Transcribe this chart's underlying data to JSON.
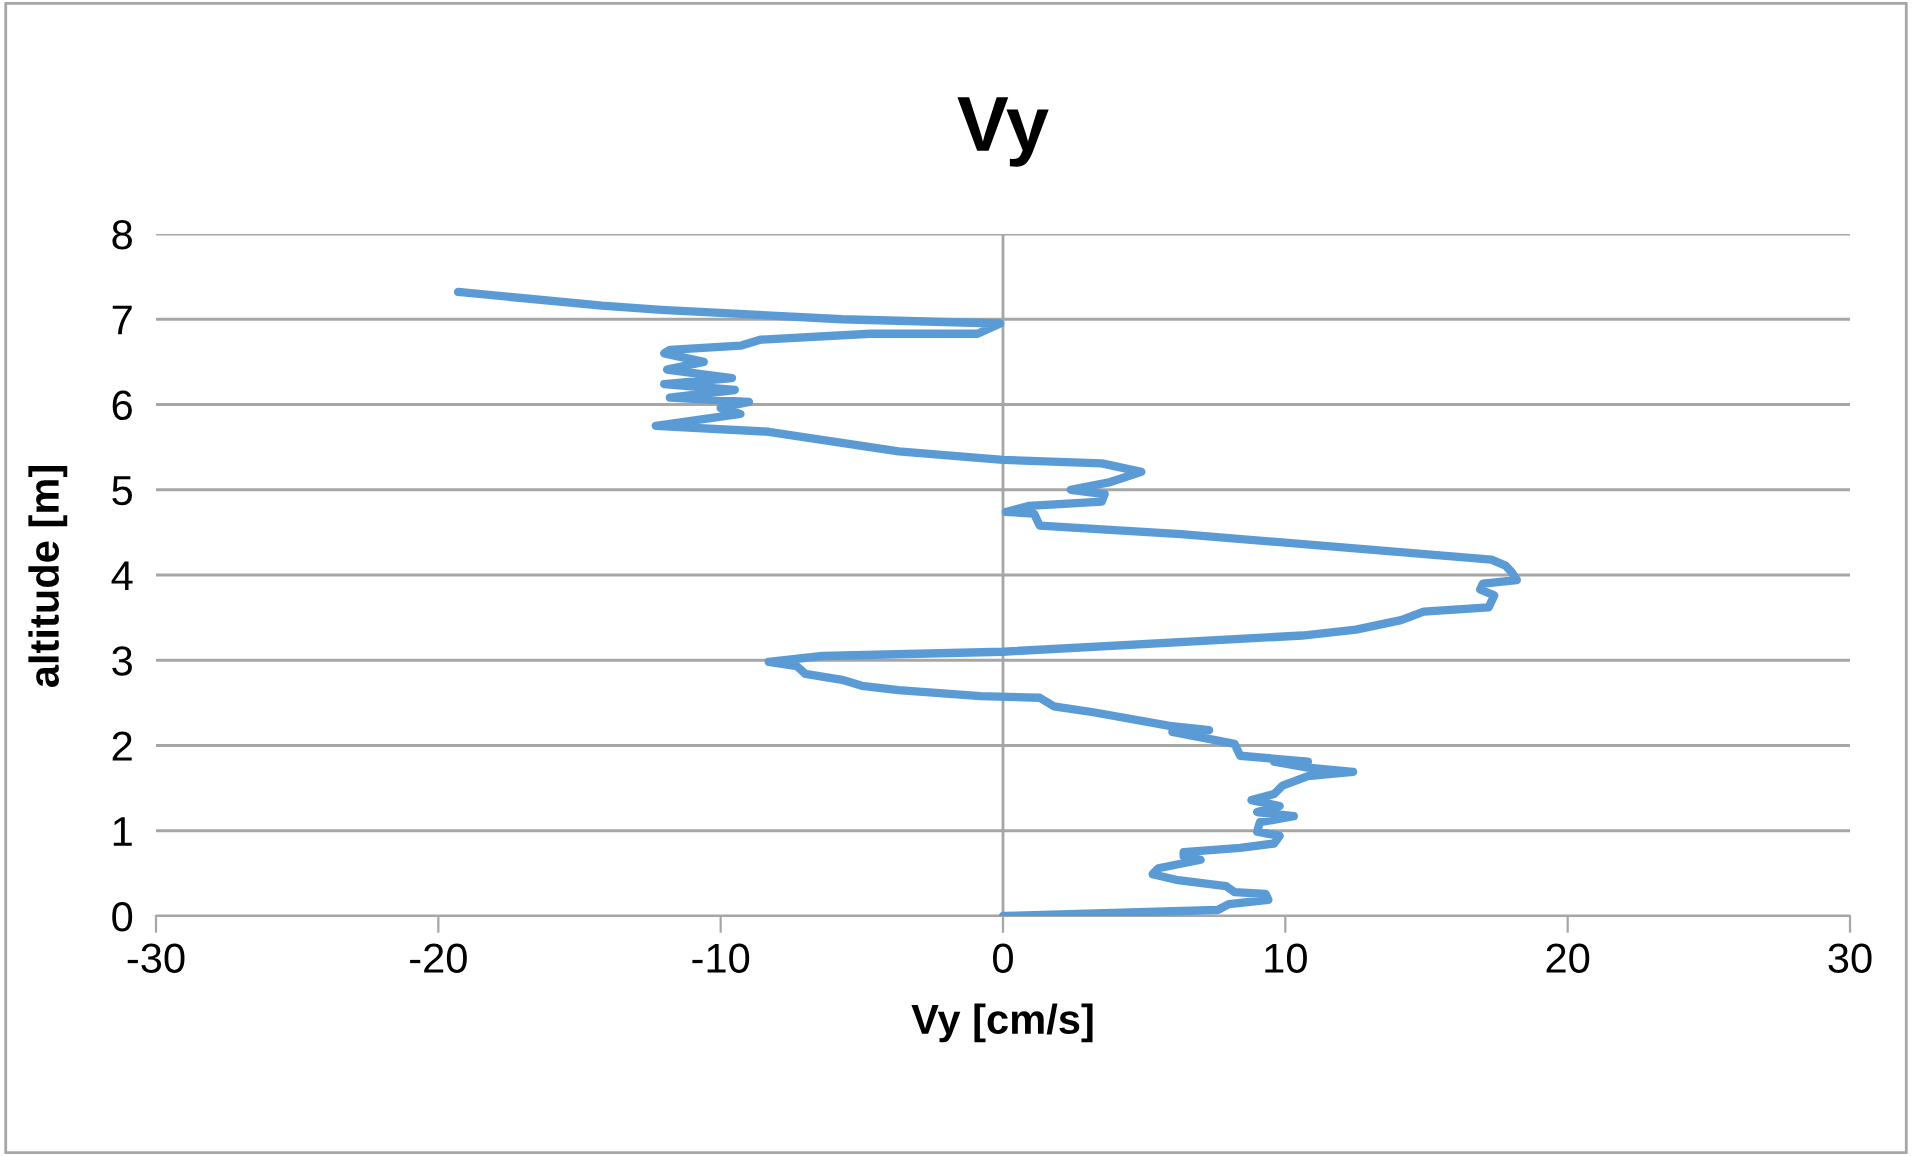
{
  "chart_data": {
    "type": "line",
    "title": "Vy",
    "xlabel": "Vy [cm/s]",
    "ylabel": "altitude [m]",
    "xlim": [
      -30,
      30
    ],
    "xticks": [
      -30,
      -20,
      -10,
      0,
      10,
      20,
      30
    ],
    "ylim": [
      0,
      8
    ],
    "yticks": [
      0,
      1,
      2,
      3,
      4,
      5,
      6,
      7,
      8
    ],
    "grid": "y",
    "legend": false,
    "ref_lines": [
      {
        "axis": "x",
        "value": 0,
        "color": "#a6a6a6"
      }
    ],
    "marker": "none",
    "line_style": "solid",
    "series": [
      {
        "color": "#5b9bd5",
        "x": [
          0,
          7.6,
          8.0,
          9.4,
          9.3,
          8.2,
          7.9,
          6.2,
          5.3,
          5.5,
          7.0,
          6.4,
          6.4,
          8.4,
          9.6,
          9.8,
          9.0,
          9.1,
          10.3,
          9.0,
          9.8,
          8.8,
          9.6,
          9.9,
          10.8,
          12.4,
          10.8,
          9.6,
          10.8,
          8.4,
          8.2,
          6.0,
          7.3,
          5.9,
          3.2,
          1.8,
          1.3,
          -0.8,
          -3.7,
          -5.0,
          -5.7,
          -7.0,
          -7.3,
          -8.3,
          -6.4,
          0,
          10.6,
          12.5,
          14.1,
          14.9,
          17.2,
          17.4,
          16.9,
          17.0,
          18.2,
          18.0,
          17.8,
          17.3,
          6.3,
          1.3,
          1.1,
          0.1,
          0.9,
          3.5,
          3.6,
          2.4,
          3.8,
          4.9,
          3.5,
          0,
          -3.7,
          -8.3,
          -12.3,
          -9.3,
          -10.0,
          -9.0,
          -11.8,
          -9.5,
          -12.0,
          -9.6,
          -11.9,
          -10.6,
          -12.0,
          -11.8,
          -9.3,
          -8.6,
          -4.7,
          -0.9,
          -0.1,
          -5.7,
          -12.1,
          -14.2,
          -19.3
        ],
        "values": [
          0,
          0.07,
          0.14,
          0.19,
          0.26,
          0.28,
          0.35,
          0.42,
          0.49,
          0.56,
          0.66,
          0.7,
          0.75,
          0.8,
          0.85,
          0.94,
          0.99,
          1.1,
          1.17,
          1.22,
          1.29,
          1.36,
          1.43,
          1.53,
          1.64,
          1.69,
          1.74,
          1.81,
          1.81,
          1.88,
          2.02,
          2.16,
          2.18,
          2.23,
          2.39,
          2.46,
          2.56,
          2.58,
          2.65,
          2.7,
          2.77,
          2.84,
          2.93,
          2.98,
          3.05,
          3.1,
          3.29,
          3.36,
          3.47,
          3.57,
          3.62,
          3.76,
          3.83,
          3.9,
          3.94,
          4.04,
          4.11,
          4.18,
          4.48,
          4.58,
          4.72,
          4.74,
          4.81,
          4.86,
          4.95,
          5.0,
          5.09,
          5.21,
          5.31,
          5.35,
          5.45,
          5.68,
          5.75,
          5.89,
          5.96,
          6.03,
          6.08,
          6.17,
          6.24,
          6.31,
          6.41,
          6.5,
          6.6,
          6.64,
          6.69,
          6.76,
          6.83,
          6.83,
          6.95,
          7.0,
          7.11,
          7.16,
          7.32
        ]
      }
    ]
  }
}
